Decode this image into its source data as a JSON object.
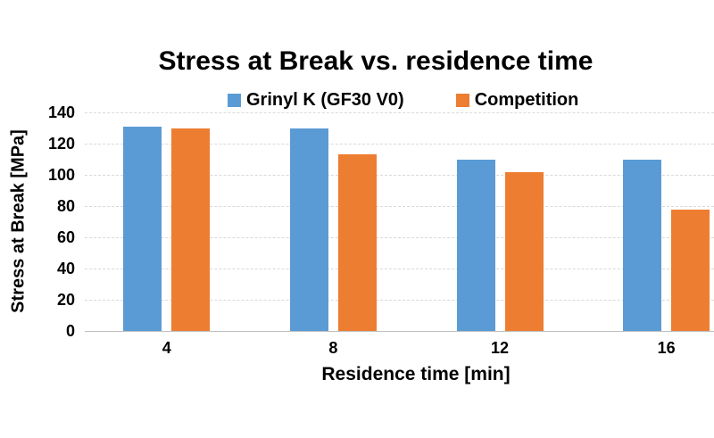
{
  "chart_data": {
    "type": "bar",
    "title": "Stress at Break vs. residence time",
    "xlabel": "Residence time [min]",
    "ylabel": "Stress at Break [MPa]",
    "categories": [
      "4",
      "8",
      "12",
      "16"
    ],
    "series": [
      {
        "name": "Grinyl K (GF30 V0)",
        "color": "#5B9BD5",
        "values": [
          131,
          130,
          110,
          110
        ]
      },
      {
        "name": "Competition",
        "color": "#ED7D31",
        "values": [
          130,
          113,
          102,
          78
        ]
      }
    ],
    "ylim": [
      0,
      140
    ],
    "yticks": [
      0,
      20,
      40,
      60,
      80,
      100,
      120,
      140
    ],
    "grid": true,
    "legend_position": "top",
    "colors": {
      "background": "#FFFFFF",
      "text": "#000000",
      "gridline": "#D9D9D9",
      "axis_line": "#BFBFBF"
    }
  }
}
